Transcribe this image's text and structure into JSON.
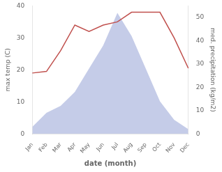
{
  "chart_data": {
    "type": "line",
    "categories": [
      "Jan",
      "Feb",
      "Mar",
      "Apr",
      "May",
      "Jun",
      "Jul",
      "Aug",
      "Sep",
      "Oct",
      "Nov",
      "Dec"
    ],
    "series": [
      {
        "type": "area",
        "color": "#c5cce8",
        "axis": "y2",
        "values": [
          3,
          9,
          12,
          18,
          28,
          38,
          52,
          42,
          28,
          14,
          6,
          2
        ]
      },
      {
        "type": "line",
        "color": "#c0504d",
        "values": [
          19.0,
          19.5,
          26.0,
          34.0,
          32.0,
          34.0,
          35.0,
          38.0,
          38.0,
          38.0,
          30.0,
          20.5
        ]
      }
    ],
    "xlabel": "date (month)",
    "ylabel": "max temp (C)",
    "y2label": "med. precipitation (kg/m2)",
    "ylim": [
      0,
      40
    ],
    "yticks": [
      0,
      10,
      20,
      30,
      40
    ],
    "y2lim": [
      0,
      55
    ],
    "y2ticks": [
      0,
      10,
      20,
      30,
      40,
      50
    ],
    "grid": false
  }
}
